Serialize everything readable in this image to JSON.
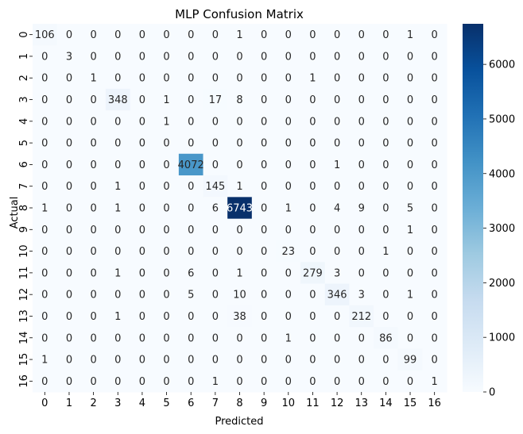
{
  "chart_data": {
    "type": "heatmap",
    "title": "MLP Confusion Matrix",
    "xlabel": "Predicted",
    "ylabel": "Actual",
    "x_categories": [
      "0",
      "1",
      "2",
      "3",
      "4",
      "5",
      "6",
      "7",
      "8",
      "9",
      "10",
      "11",
      "12",
      "13",
      "14",
      "15",
      "16"
    ],
    "y_categories": [
      "0",
      "1",
      "2",
      "3",
      "4",
      "5",
      "6",
      "7",
      "8",
      "9",
      "10",
      "11",
      "12",
      "13",
      "14",
      "15",
      "16"
    ],
    "values": [
      [
        106,
        0,
        0,
        0,
        0,
        0,
        0,
        0,
        1,
        0,
        0,
        0,
        0,
        0,
        0,
        1,
        0
      ],
      [
        0,
        3,
        0,
        0,
        0,
        0,
        0,
        0,
        0,
        0,
        0,
        0,
        0,
        0,
        0,
        0,
        0
      ],
      [
        0,
        0,
        1,
        0,
        0,
        0,
        0,
        0,
        0,
        0,
        0,
        1,
        0,
        0,
        0,
        0,
        0
      ],
      [
        0,
        0,
        0,
        348,
        0,
        1,
        0,
        17,
        8,
        0,
        0,
        0,
        0,
        0,
        0,
        0,
        0
      ],
      [
        0,
        0,
        0,
        0,
        0,
        1,
        0,
        0,
        0,
        0,
        0,
        0,
        0,
        0,
        0,
        0,
        0
      ],
      [
        0,
        0,
        0,
        0,
        0,
        0,
        0,
        0,
        0,
        0,
        0,
        0,
        0,
        0,
        0,
        0,
        0
      ],
      [
        0,
        0,
        0,
        0,
        0,
        0,
        4072,
        0,
        0,
        0,
        0,
        0,
        1,
        0,
        0,
        0,
        0
      ],
      [
        0,
        0,
        0,
        1,
        0,
        0,
        0,
        145,
        1,
        0,
        0,
        0,
        0,
        0,
        0,
        0,
        0
      ],
      [
        1,
        0,
        0,
        1,
        0,
        0,
        0,
        6,
        6743,
        0,
        1,
        0,
        4,
        9,
        0,
        5,
        0
      ],
      [
        0,
        0,
        0,
        0,
        0,
        0,
        0,
        0,
        0,
        0,
        0,
        0,
        0,
        0,
        0,
        1,
        0
      ],
      [
        0,
        0,
        0,
        0,
        0,
        0,
        0,
        0,
        0,
        0,
        23,
        0,
        0,
        0,
        1,
        0,
        0
      ],
      [
        0,
        0,
        0,
        1,
        0,
        0,
        6,
        0,
        1,
        0,
        0,
        279,
        3,
        0,
        0,
        0,
        0
      ],
      [
        0,
        0,
        0,
        0,
        0,
        0,
        5,
        0,
        10,
        0,
        0,
        0,
        346,
        3,
        0,
        1,
        0
      ],
      [
        0,
        0,
        0,
        1,
        0,
        0,
        0,
        0,
        38,
        0,
        0,
        0,
        0,
        212,
        0,
        0,
        0
      ],
      [
        0,
        0,
        0,
        0,
        0,
        0,
        0,
        0,
        0,
        0,
        1,
        0,
        0,
        0,
        86,
        0,
        0
      ],
      [
        1,
        0,
        0,
        0,
        0,
        0,
        0,
        0,
        0,
        0,
        0,
        0,
        0,
        0,
        0,
        99,
        0
      ],
      [
        0,
        0,
        0,
        0,
        0,
        0,
        0,
        1,
        0,
        0,
        0,
        0,
        0,
        0,
        0,
        0,
        1
      ]
    ],
    "colorbar": {
      "colormap": "Blues",
      "range": [
        0,
        6743
      ],
      "ticks": [
        0,
        1000,
        2000,
        3000,
        4000,
        5000,
        6000
      ]
    },
    "annotations": true,
    "grid": false
  }
}
